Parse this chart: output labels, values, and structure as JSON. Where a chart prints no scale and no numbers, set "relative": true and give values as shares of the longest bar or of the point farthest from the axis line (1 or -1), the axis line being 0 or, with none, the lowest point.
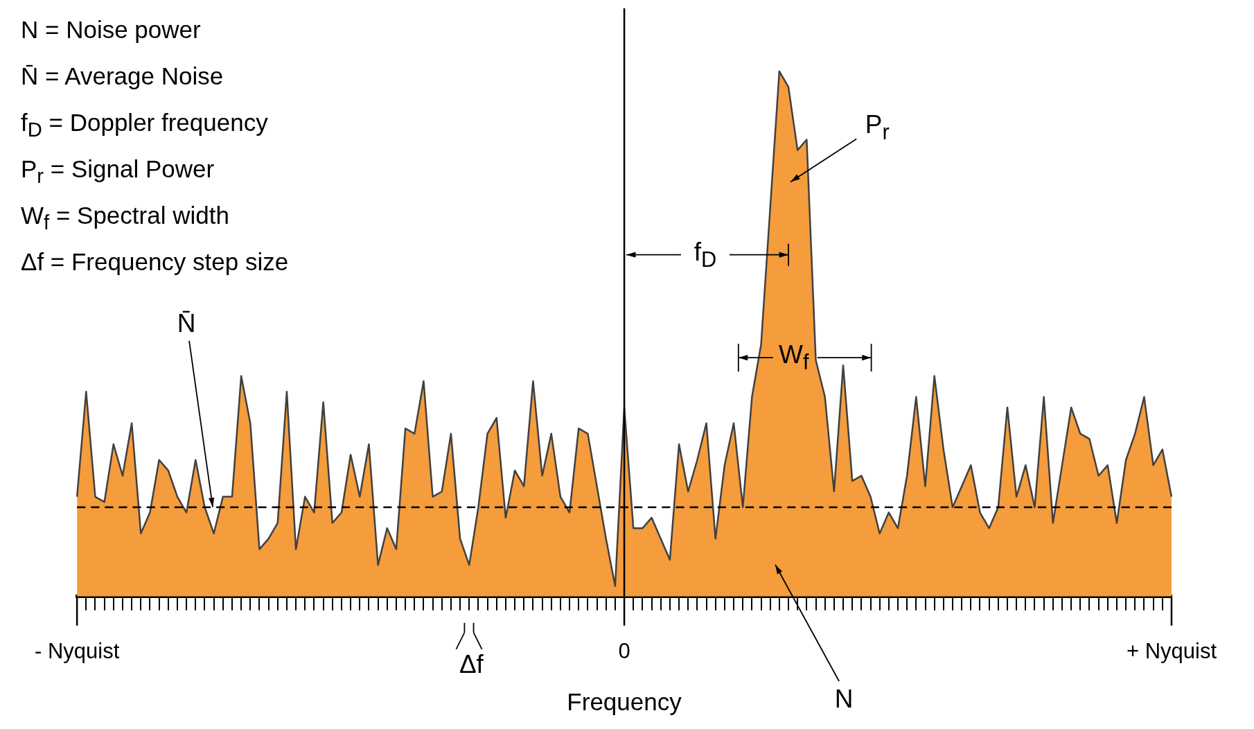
{
  "chart_data": {
    "type": "area",
    "relative": true,
    "xlabel": "Frequency",
    "marker": "none",
    "grid": false,
    "categories": [
      "- Nyquist",
      null,
      null,
      null,
      null,
      null,
      null,
      null,
      null,
      null,
      null,
      null,
      null,
      null,
      null,
      null,
      null,
      null,
      null,
      null,
      null,
      null,
      null,
      null,
      null,
      null,
      null,
      null,
      null,
      null,
      null,
      null,
      null,
      null,
      null,
      null,
      null,
      null,
      null,
      null,
      null,
      null,
      null,
      null,
      null,
      null,
      null,
      null,
      null,
      null,
      null,
      null,
      null,
      null,
      null,
      null,
      null,
      null,
      null,
      null,
      "0",
      null,
      null,
      null,
      null,
      null,
      null,
      null,
      null,
      null,
      null,
      null,
      null,
      null,
      null,
      null,
      null,
      null,
      null,
      null,
      null,
      null,
      null,
      null,
      null,
      null,
      null,
      null,
      null,
      null,
      null,
      null,
      null,
      null,
      null,
      null,
      null,
      null,
      null,
      null,
      null,
      null,
      null,
      null,
      null,
      null,
      null,
      null,
      null,
      null,
      null,
      null,
      null,
      null,
      null,
      null,
      null,
      null,
      null,
      null,
      "+ Nyquist"
    ],
    "series": [
      {
        "color": "#f59c3c",
        "values": [
          0.19,
          0.39,
          0.19,
          0.18,
          0.29,
          0.23,
          0.33,
          0.12,
          0.16,
          0.26,
          0.24,
          0.19,
          0.16,
          0.26,
          0.17,
          0.12,
          0.19,
          0.19,
          0.42,
          0.33,
          0.09,
          0.11,
          0.14,
          0.39,
          0.09,
          0.19,
          0.16,
          0.37,
          0.14,
          0.16,
          0.27,
          0.19,
          0.29,
          0.06,
          0.13,
          0.09,
          0.32,
          0.31,
          0.41,
          0.19,
          0.2,
          0.31,
          0.11,
          0.06,
          0.17,
          0.31,
          0.34,
          0.15,
          0.24,
          0.21,
          0.41,
          0.23,
          0.31,
          0.19,
          0.16,
          0.32,
          0.31,
          0.21,
          0.11,
          0.02,
          0.36,
          0.13,
          0.13,
          0.15,
          0.11,
          0.07,
          0.29,
          0.2,
          0.26,
          0.33,
          0.11,
          0.25,
          0.33,
          0.17,
          0.38,
          0.48,
          0.74,
          1,
          0.97,
          0.85,
          0.87,
          0.45,
          0.38,
          0.2,
          0.44,
          0.22,
          0.23,
          0.19,
          0.12,
          0.16,
          0.13,
          0.23,
          0.38,
          0.21,
          0.42,
          0.28,
          0.17,
          0.21,
          0.25,
          0.16,
          0.13,
          0.17,
          0.36,
          0.19,
          0.25,
          0.17,
          0.38,
          0.14,
          0.25,
          0.36,
          0.31,
          0.3,
          0.23,
          0.25,
          0.14,
          0.26,
          0.31,
          0.38,
          0.25,
          0.28,
          0.19
        ]
      },
      {
        "type": "line",
        "line_style": "dashed",
        "color": "#000000",
        "values": [
          0.17,
          0.17,
          0.17,
          0.17,
          0.17,
          0.17,
          0.17,
          0.17,
          0.17,
          0.17,
          0.17,
          0.17,
          0.17,
          0.17,
          0.17,
          0.17,
          0.17,
          0.17,
          0.17,
          0.17,
          0.17,
          0.17,
          0.17,
          0.17,
          0.17,
          0.17,
          0.17,
          0.17,
          0.17,
          0.17,
          0.17,
          0.17,
          0.17,
          0.17,
          0.17,
          0.17,
          0.17,
          0.17,
          0.17,
          0.17,
          0.17,
          0.17,
          0.17,
          0.17,
          0.17,
          0.17,
          0.17,
          0.17,
          0.17,
          0.17,
          0.17,
          0.17,
          0.17,
          0.17,
          0.17,
          0.17,
          0.17,
          0.17,
          0.17,
          0.17,
          0.17,
          0.17,
          0.17,
          0.17,
          0.17,
          0.17,
          0.17,
          0.17,
          0.17,
          0.17,
          0.17,
          0.17,
          0.17,
          0.17,
          0.17,
          0.17,
          0.17,
          0.17,
          0.17,
          0.17,
          0.17,
          0.17,
          0.17,
          0.17,
          0.17,
          0.17,
          0.17,
          0.17,
          0.17,
          0.17,
          0.17,
          0.17,
          0.17,
          0.17,
          0.17,
          0.17,
          0.17,
          0.17,
          0.17,
          0.17,
          0.17,
          0.17,
          0.17,
          0.17,
          0.17,
          0.17,
          0.17,
          0.17,
          0.17,
          0.17,
          0.17,
          0.17,
          0.17,
          0.17,
          0.17,
          0.17,
          0.17,
          0.17,
          0.17,
          0.17,
          0.17
        ]
      }
    ],
    "annotations": [
      "N = Noise power",
      "N̄ = Average Noise",
      "f$_{D}$ = Doppler frequency",
      "P$_{r}$ = Signal Power",
      "W$_{f}$ = Spectral width",
      "Δf = Frequency step size",
      "N̄",
      "P$_{r}$",
      "f$_{D}$",
      "W$_{f}$",
      "N",
      "Δf"
    ]
  }
}
